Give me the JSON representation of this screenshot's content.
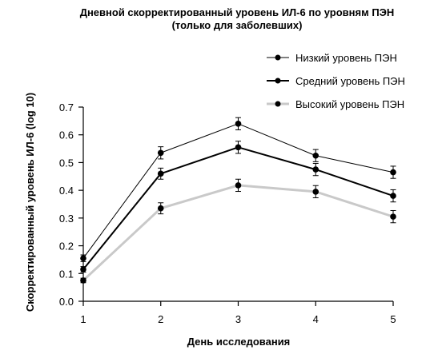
{
  "chart_data": {
    "type": "line",
    "title": "Дневной скорректированный уровень ИЛ-6 по уровням ПЭН",
    "subtitle": "(только для заболевших)",
    "xlabel": "День исследования",
    "ylabel": "Скорректированный уровень ИЛ-6 (log 10)",
    "x": [
      1,
      2,
      3,
      4,
      5
    ],
    "x_ticks": [
      "1",
      "2",
      "3",
      "4",
      "5"
    ],
    "ylim": [
      0,
      0.7
    ],
    "y_ticks": [
      "0.0",
      "0.1",
      "0.2",
      "0.3",
      "0.4",
      "0.5",
      "0.6",
      "0.7"
    ],
    "y_tick_values": [
      0,
      0.1,
      0.2,
      0.3,
      0.4,
      0.5,
      0.6,
      0.7
    ],
    "legend_position": "top-right",
    "grid": false,
    "series": [
      {
        "name": "Низкий уровень ПЭН",
        "values": [
          0.155,
          0.535,
          0.64,
          0.525,
          0.465
        ],
        "error": [
          0.012,
          0.022,
          0.022,
          0.022,
          0.022
        ],
        "color": "#000000",
        "style": "thin"
      },
      {
        "name": "Средний уровень ПЭН",
        "values": [
          0.115,
          0.46,
          0.555,
          0.475,
          0.38
        ],
        "error": [
          0.01,
          0.02,
          0.022,
          0.022,
          0.022
        ],
        "color": "#000000",
        "style": "medium"
      },
      {
        "name": "Высокий уровень ПЭН",
        "values": [
          0.075,
          0.335,
          0.418,
          0.395,
          0.305
        ],
        "error": [
          0.008,
          0.02,
          0.022,
          0.022,
          0.022
        ],
        "color": "#c8c8c8",
        "style": "thick-gray"
      }
    ]
  }
}
